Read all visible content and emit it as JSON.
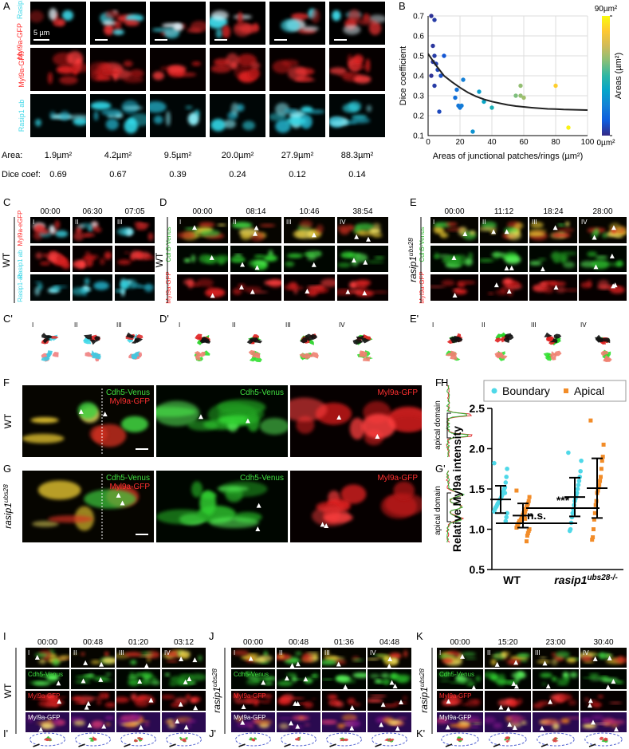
{
  "panel_labels": [
    "A",
    "B",
    "C",
    "C'",
    "D",
    "D'",
    "E",
    "E'",
    "F",
    "F'",
    "G",
    "G'",
    "H",
    "I",
    "I'",
    "J",
    "J'",
    "K",
    "K'"
  ],
  "panel_A": {
    "rows": [
      [
        {
          "text": "Myl9a-GFP",
          "color": "#ff3030"
        },
        {
          "text": "Rasip1 ab",
          "color": "#40d8e8"
        }
      ],
      [
        {
          "text": "Myl9a-GFP",
          "color": "#ff3030"
        }
      ],
      [
        {
          "text": "Rasip1 ab",
          "color": "#40d8e8"
        }
      ]
    ],
    "scale_bar": "5 µm",
    "area_label": "Area:",
    "areas": [
      "1.9µm²",
      "4.2µm²",
      "9.5µm²",
      "20.0µm²",
      "27.9µm²",
      "88.3µm²"
    ],
    "dice_label": "Dice coef:",
    "dice": [
      0.69,
      0.67,
      0.39,
      0.24,
      0.12,
      0.14
    ]
  },
  "timelapse": [
    {
      "side": "WT",
      "times": [
        "00:00",
        "06:30",
        "07:05"
      ],
      "numerals": [
        "I",
        "II",
        "III"
      ],
      "channels": [
        [
          {
            "text": "Rasip1 ab",
            "color": "#40d8e8"
          },
          {
            "text": "Myl9a-eGFP",
            "color": "#ff3030"
          }
        ],
        [],
        [
          {
            "text": "Rasip1-ab",
            "color": "#40d8e8"
          }
        ]
      ]
    },
    {
      "side": "WT",
      "times": [
        "00:00",
        "08:14",
        "10:46",
        "38:54"
      ],
      "numerals": [
        "I",
        "II",
        "III",
        "IV"
      ],
      "channels": [
        [
          {
            "text": "Cdh5-Venus",
            "color": "#30c030"
          }
        ],
        [],
        [
          {
            "text": "Myl9a-GFP",
            "color": "#ff3030"
          }
        ]
      ]
    },
    {
      "side": "rasip1",
      "side_sup": "ubs28",
      "times": [
        "00:00",
        "11:12",
        "18:24",
        "28:00"
      ],
      "numerals": [
        "I",
        "II",
        "III",
        "IV"
      ],
      "channels": [
        [
          {
            "text": "Cdh5-Venus",
            "color": "#30c030"
          }
        ],
        [],
        [
          {
            "text": "Myl9a-GFP",
            "color": "#ff3030"
          }
        ]
      ]
    },
    {
      "side": "WT",
      "times": [
        "00:00",
        "00:48",
        "01:20",
        "03:12"
      ],
      "numerals": [
        "I",
        "II",
        "III",
        "IV"
      ],
      "channels": [
        [],
        [
          {
            "text": "Cdh5-Venus",
            "color": "#40e040"
          }
        ],
        [
          {
            "text": "Myl9a-GFP",
            "color": "#ff3030"
          }
        ],
        [
          {
            "text": "Myl9a-GFP",
            "color": "#ffffff"
          }
        ]
      ]
    },
    {
      "side": "rasip1",
      "side_sup": "ubs28",
      "times": [
        "00:00",
        "00:48",
        "01:36",
        "04:48"
      ],
      "numerals": [
        "I",
        "II",
        "III",
        "IV"
      ],
      "channels": [
        [],
        [
          {
            "text": "Cdh5-Venus",
            "color": "#40e040"
          }
        ],
        [
          {
            "text": "Myl9a-GFP",
            "color": "#ff3030"
          }
        ],
        [
          {
            "text": "Myl9a-GFP",
            "color": "#ffffff"
          }
        ]
      ]
    },
    {
      "side": "rasip1",
      "side_sup": "ubs28",
      "times": [
        "00:00",
        "15:20",
        "23:00",
        "30:40"
      ],
      "numerals": [
        "I",
        "II",
        "III",
        "IV"
      ],
      "channels": [
        [],
        [
          {
            "text": "Cdh5-Venus",
            "color": "#40e040"
          }
        ],
        [
          {
            "text": "Myl9a-GFP",
            "color": "#ff3030"
          }
        ],
        [
          {
            "text": "Myl9a-GFP",
            "color": "#ffffff"
          }
        ]
      ]
    }
  ],
  "fg": [
    {
      "side": "WT",
      "labels": [
        [
          {
            "text": "Cdh5-Venus",
            "color": "#40e040"
          },
          {
            "text": "Myl9a-GFP",
            "color": "#ff3030"
          }
        ],
        [
          {
            "text": "Cdh5-Venus",
            "color": "#40e040"
          }
        ],
        [
          {
            "text": "Myl9a-GFP",
            "color": "#ff3030"
          }
        ]
      ],
      "profile_label": "apical domain"
    },
    {
      "side": "rasip1",
      "side_sup": "ubs28",
      "labels": [
        [
          {
            "text": "Cdh5-Venus",
            "color": "#40e040"
          },
          {
            "text": "Myl9a-GFP",
            "color": "#ff3030"
          }
        ],
        [
          {
            "text": "Cdh5-Venus",
            "color": "#40e040"
          }
        ],
        [
          {
            "text": "Myl9a-GFP",
            "color": "#ff3030"
          }
        ]
      ],
      "profile_label": "apical domain"
    }
  ],
  "chart_data": [
    {
      "type": "scatter",
      "x": [
        2,
        4,
        3,
        4,
        3,
        5,
        6,
        2,
        4,
        10,
        8,
        7,
        18,
        17,
        19,
        21,
        20,
        22,
        28,
        32,
        35,
        40,
        55,
        58,
        58,
        60,
        80,
        88
      ],
      "values": [
        0.7,
        0.68,
        0.55,
        0.5,
        0.47,
        0.46,
        0.43,
        0.4,
        0.35,
        0.5,
        0.4,
        0.22,
        0.33,
        0.29,
        0.25,
        0.25,
        0.24,
        0.38,
        0.12,
        0.32,
        0.27,
        0.24,
        0.3,
        0.35,
        0.3,
        0.29,
        0.35,
        0.14
      ],
      "xlim": [
        0,
        100
      ],
      "ylim": [
        0.1,
        0.7
      ],
      "xticks": [
        0,
        20,
        40,
        60,
        80,
        100
      ],
      "yticks": [
        0.1,
        0.2,
        0.3,
        0.4,
        0.5,
        0.6,
        0.7
      ],
      "grid": true,
      "xlabel": "Areas of junctional patches/rings (µm²)",
      "ylabel": "Dice coefficient",
      "clim": [
        0,
        90
      ],
      "colormap": [
        "#352a87",
        "#0f5cdd",
        "#1481d6",
        "#06a4ca",
        "#2eb7a4",
        "#87bf77",
        "#d1bb59",
        "#fec832",
        "#f9fb0e"
      ],
      "cticks": [
        {
          "value": 0,
          "label": "0µm²"
        },
        {
          "value": 90,
          "label": "90µm²"
        }
      ],
      "colorbar_label": "Areas (µm²)",
      "fit": {
        "color": "#222222",
        "x": [
          0,
          5,
          10,
          15,
          20,
          25,
          30,
          35,
          40,
          45,
          50,
          55,
          60,
          65,
          70,
          75,
          80,
          85,
          90,
          95,
          100
        ],
        "values": [
          0.51,
          0.452,
          0.4,
          0.369,
          0.341,
          0.316,
          0.297,
          0.282,
          0.271,
          0.262,
          0.254,
          0.248,
          0.244,
          0.24,
          0.237,
          0.234,
          0.233,
          0.231,
          0.23,
          0.229,
          0.228
        ]
      }
    },
    {
      "type": "dot",
      "categories": [
        "WT",
        "rasip1"
      ],
      "category_sup": [
        null,
        "ubs28-/-"
      ],
      "ylabel": "Relative Myl9a intensity",
      "ylim": [
        0.5,
        2.5
      ],
      "yticks": [
        0.5,
        {
          "value": 1,
          "label": "1.0"
        },
        1.5,
        {
          "value": 2,
          "label": "2.0"
        },
        2.5
      ],
      "series": [
        {
          "name": "Boundary",
          "color": "#4fd8e8",
          "marker": "circle",
          "values": [
            [
              1.82,
              1.75,
              1.65,
              1.58,
              1.52,
              1.5,
              1.47,
              1.45,
              1.42,
              1.4,
              1.38,
              1.37,
              1.35,
              1.33,
              1.32,
              1.3,
              1.28,
              1.27,
              1.25,
              1.22,
              1.2,
              1.15,
              1.1,
              1.45
            ],
            [
              1.95,
              1.85,
              1.72,
              1.65,
              1.6,
              1.55,
              1.5,
              1.45,
              1.42,
              1.38,
              1.35,
              1.3,
              1.25,
              1.2,
              1.15,
              1.08,
              1.0,
              0.98
            ]
          ],
          "mean": [
            1.37,
            1.4
          ],
          "sd": [
            0.17,
            0.24
          ]
        },
        {
          "name": "Apical",
          "color": "#f28c28",
          "marker": "square",
          "values": [
            [
              1.48,
              1.4,
              1.35,
              1.32,
              1.3,
              1.28,
              1.25,
              1.22,
              1.2,
              1.2,
              1.18,
              1.15,
              1.15,
              1.12,
              1.1,
              1.1,
              1.08,
              1.05,
              1.05,
              1.02,
              1.0,
              0.98,
              0.95,
              0.92,
              0.85,
              1.25,
              1.13,
              1.17
            ],
            [
              2.35,
              2.05,
              1.9,
              1.85,
              1.75,
              1.65,
              1.6,
              1.55,
              1.52,
              1.48,
              1.45,
              1.35,
              1.3,
              1.2,
              1.12,
              1.0,
              0.9,
              0.87
            ]
          ],
          "mean": [
            1.17,
            1.51
          ],
          "sd": [
            0.15,
            0.37
          ]
        }
      ],
      "annotations": [
        "n.s.",
        "***"
      ]
    }
  ]
}
